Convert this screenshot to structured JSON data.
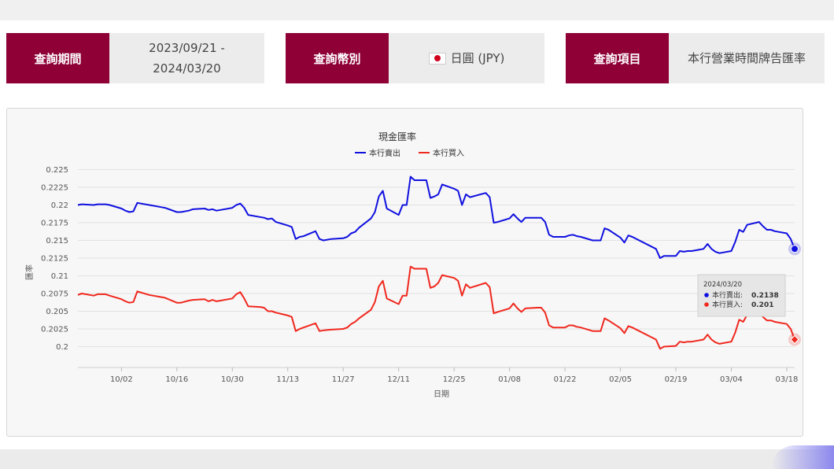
{
  "query": {
    "period_label": "查詢期間",
    "period_line1": "2023/09/21 -",
    "period_line2": "2024/03/20",
    "currency_label": "查詢幣別",
    "currency_value": "日圓 (JPY)",
    "item_label": "查詢項目",
    "item_value": "本行營業時間牌告匯率"
  },
  "colors": {
    "sell": "#1010e0",
    "buy": "#f0281e",
    "label_bg": "#8e0036"
  },
  "icons": {
    "currency_flag": "japan-flag-icon"
  },
  "chart_data": {
    "type": "line",
    "title": "現金匯率",
    "xlabel": "日期",
    "ylabel": "匯率",
    "x_range": [
      "2023-09-21",
      "2024-03-20"
    ],
    "ylim": [
      0.1975,
      0.2255
    ],
    "y_ticks": [
      "0.2",
      "0.2025",
      "0.205",
      "0.2075",
      "0.21",
      "0.2125",
      "0.215",
      "0.2175",
      "0.22",
      "0.2225",
      "0.225"
    ],
    "x_ticks": [
      {
        "date": "2023-10-02",
        "label": "10/02"
      },
      {
        "date": "2023-10-16",
        "label": "10/16"
      },
      {
        "date": "2023-10-30",
        "label": "10/30"
      },
      {
        "date": "2023-11-13",
        "label": "11/13"
      },
      {
        "date": "2023-11-27",
        "label": "11/27"
      },
      {
        "date": "2023-12-11",
        "label": "12/11"
      },
      {
        "date": "2023-12-25",
        "label": "12/25"
      },
      {
        "date": "2024-01-08",
        "label": "01/08"
      },
      {
        "date": "2024-01-22",
        "label": "01/22"
      },
      {
        "date": "2024-02-05",
        "label": "02/05"
      },
      {
        "date": "2024-02-19",
        "label": "02/19"
      },
      {
        "date": "2024-03-04",
        "label": "03/04"
      },
      {
        "date": "2024-03-18",
        "label": "03/18"
      }
    ],
    "grid": true,
    "legend_position": "top-center",
    "series": [
      {
        "name": "本行賣出",
        "color": "#1010e0",
        "points": [
          [
            "2023-09-21",
            0.22
          ],
          [
            "2023-09-22",
            0.2201
          ],
          [
            "2023-09-25",
            0.22
          ],
          [
            "2023-09-26",
            0.2201
          ],
          [
            "2023-09-28",
            0.2201
          ],
          [
            "2023-09-29",
            0.22
          ],
          [
            "2023-10-02",
            0.2195
          ],
          [
            "2023-10-03",
            0.2192
          ],
          [
            "2023-10-04",
            0.219
          ],
          [
            "2023-10-05",
            0.2191
          ],
          [
            "2023-10-06",
            0.2203
          ],
          [
            "2023-10-09",
            0.22
          ],
          [
            "2023-10-12",
            0.2197
          ],
          [
            "2023-10-13",
            0.2196
          ],
          [
            "2023-10-16",
            0.219
          ],
          [
            "2023-10-17",
            0.219
          ],
          [
            "2023-10-19",
            0.2192
          ],
          [
            "2023-10-20",
            0.2194
          ],
          [
            "2023-10-23",
            0.2195
          ],
          [
            "2023-10-24",
            0.2193
          ],
          [
            "2023-10-25",
            0.2194
          ],
          [
            "2023-10-26",
            0.2192
          ],
          [
            "2023-10-27",
            0.2193
          ],
          [
            "2023-10-30",
            0.2196
          ],
          [
            "2023-10-31",
            0.22
          ],
          [
            "2023-11-01",
            0.2202
          ],
          [
            "2023-11-02",
            0.2196
          ],
          [
            "2023-11-03",
            0.2186
          ],
          [
            "2023-11-06",
            0.2183
          ],
          [
            "2023-11-07",
            0.2182
          ],
          [
            "2023-11-08",
            0.218
          ],
          [
            "2023-11-09",
            0.2181
          ],
          [
            "2023-11-10",
            0.2176
          ],
          [
            "2023-11-13",
            0.2171
          ],
          [
            "2023-11-14",
            0.2169
          ],
          [
            "2023-11-15",
            0.2152
          ],
          [
            "2023-11-16",
            0.2155
          ],
          [
            "2023-11-17",
            0.2156
          ],
          [
            "2023-11-20",
            0.2163
          ],
          [
            "2023-11-21",
            0.2152
          ],
          [
            "2023-11-22",
            0.215
          ],
          [
            "2023-11-24",
            0.2152
          ],
          [
            "2023-11-27",
            0.2153
          ],
          [
            "2023-11-28",
            0.2155
          ],
          [
            "2023-11-29",
            0.216
          ],
          [
            "2023-11-30",
            0.2162
          ],
          [
            "2023-12-01",
            0.2168
          ],
          [
            "2023-12-04",
            0.2181
          ],
          [
            "2023-12-05",
            0.219
          ],
          [
            "2023-12-06",
            0.2212
          ],
          [
            "2023-12-07",
            0.222
          ],
          [
            "2023-12-08",
            0.2195
          ],
          [
            "2023-12-11",
            0.2186
          ],
          [
            "2023-12-12",
            0.22
          ],
          [
            "2023-12-13",
            0.22
          ],
          [
            "2023-12-14",
            0.224
          ],
          [
            "2023-12-15",
            0.2235
          ],
          [
            "2023-12-18",
            0.2235
          ],
          [
            "2023-12-19",
            0.221
          ],
          [
            "2023-12-20",
            0.2212
          ],
          [
            "2023-12-21",
            0.2215
          ],
          [
            "2023-12-22",
            0.2229
          ],
          [
            "2023-12-25",
            0.2223
          ],
          [
            "2023-12-26",
            0.222
          ],
          [
            "2023-12-27",
            0.22
          ],
          [
            "2023-12-28",
            0.2215
          ],
          [
            "2023-12-29",
            0.2211
          ],
          [
            "2024-01-02",
            0.2217
          ],
          [
            "2024-01-03",
            0.2211
          ],
          [
            "2024-01-04",
            0.2175
          ],
          [
            "2024-01-05",
            0.2176
          ],
          [
            "2024-01-08",
            0.2181
          ],
          [
            "2024-01-09",
            0.2187
          ],
          [
            "2024-01-10",
            0.2181
          ],
          [
            "2024-01-11",
            0.2176
          ],
          [
            "2024-01-12",
            0.2182
          ],
          [
            "2024-01-15",
            0.2182
          ],
          [
            "2024-01-16",
            0.2182
          ],
          [
            "2024-01-17",
            0.2176
          ],
          [
            "2024-01-18",
            0.2158
          ],
          [
            "2024-01-19",
            0.2155
          ],
          [
            "2024-01-22",
            0.2155
          ],
          [
            "2024-01-23",
            0.2157
          ],
          [
            "2024-01-24",
            0.2158
          ],
          [
            "2024-01-25",
            0.2156
          ],
          [
            "2024-01-26",
            0.2155
          ],
          [
            "2024-01-29",
            0.215
          ],
          [
            "2024-01-30",
            0.215
          ],
          [
            "2024-01-31",
            0.215
          ],
          [
            "2024-02-01",
            0.2167
          ],
          [
            "2024-02-02",
            0.2165
          ],
          [
            "2024-02-05",
            0.2154
          ],
          [
            "2024-02-06",
            0.2147
          ],
          [
            "2024-02-07",
            0.2157
          ],
          [
            "2024-02-08",
            0.2155
          ],
          [
            "2024-02-14",
            0.2138
          ],
          [
            "2024-02-15",
            0.2125
          ],
          [
            "2024-02-16",
            0.2128
          ],
          [
            "2024-02-19",
            0.2128
          ],
          [
            "2024-02-20",
            0.2135
          ],
          [
            "2024-02-21",
            0.2134
          ],
          [
            "2024-02-22",
            0.2135
          ],
          [
            "2024-02-23",
            0.2135
          ],
          [
            "2024-02-26",
            0.2138
          ],
          [
            "2024-02-27",
            0.2145
          ],
          [
            "2024-02-28",
            0.2138
          ],
          [
            "2024-02-29",
            0.2134
          ],
          [
            "2024-03-01",
            0.2132
          ],
          [
            "2024-03-04",
            0.2135
          ],
          [
            "2024-03-05",
            0.2148
          ],
          [
            "2024-03-06",
            0.2165
          ],
          [
            "2024-03-07",
            0.2162
          ],
          [
            "2024-03-08",
            0.2172
          ],
          [
            "2024-03-11",
            0.2176
          ],
          [
            "2024-03-12",
            0.217
          ],
          [
            "2024-03-13",
            0.2165
          ],
          [
            "2024-03-14",
            0.2165
          ],
          [
            "2024-03-15",
            0.2163
          ],
          [
            "2024-03-18",
            0.216
          ],
          [
            "2024-03-19",
            0.2152
          ],
          [
            "2024-03-20",
            0.2138
          ]
        ]
      },
      {
        "name": "本行買入",
        "color": "#f0281e",
        "points": [
          [
            "2023-09-21",
            0.2073
          ],
          [
            "2023-09-22",
            0.2075
          ],
          [
            "2023-09-25",
            0.2072
          ],
          [
            "2023-09-26",
            0.2074
          ],
          [
            "2023-09-28",
            0.2074
          ],
          [
            "2023-09-29",
            0.2072
          ],
          [
            "2023-10-02",
            0.2067
          ],
          [
            "2023-10-03",
            0.2064
          ],
          [
            "2023-10-04",
            0.2062
          ],
          [
            "2023-10-05",
            0.2063
          ],
          [
            "2023-10-06",
            0.2078
          ],
          [
            "2023-10-09",
            0.2073
          ],
          [
            "2023-10-12",
            0.207
          ],
          [
            "2023-10-13",
            0.2069
          ],
          [
            "2023-10-16",
            0.2062
          ],
          [
            "2023-10-17",
            0.2062
          ],
          [
            "2023-10-19",
            0.2065
          ],
          [
            "2023-10-20",
            0.2066
          ],
          [
            "2023-10-23",
            0.2067
          ],
          [
            "2023-10-24",
            0.2064
          ],
          [
            "2023-10-25",
            0.2066
          ],
          [
            "2023-10-26",
            0.2064
          ],
          [
            "2023-10-27",
            0.2065
          ],
          [
            "2023-10-30",
            0.2068
          ],
          [
            "2023-10-31",
            0.2074
          ],
          [
            "2023-11-01",
            0.2077
          ],
          [
            "2023-11-02",
            0.2068
          ],
          [
            "2023-11-03",
            0.2057
          ],
          [
            "2023-11-06",
            0.2056
          ],
          [
            "2023-11-07",
            0.2055
          ],
          [
            "2023-11-08",
            0.205
          ],
          [
            "2023-11-09",
            0.205
          ],
          [
            "2023-11-10",
            0.2048
          ],
          [
            "2023-11-13",
            0.2044
          ],
          [
            "2023-11-14",
            0.2042
          ],
          [
            "2023-11-15",
            0.2022
          ],
          [
            "2023-11-16",
            0.2025
          ],
          [
            "2023-11-17",
            0.2027
          ],
          [
            "2023-11-20",
            0.2033
          ],
          [
            "2023-11-21",
            0.2022
          ],
          [
            "2023-11-22",
            0.2023
          ],
          [
            "2023-11-24",
            0.2024
          ],
          [
            "2023-11-27",
            0.2025
          ],
          [
            "2023-11-28",
            0.2027
          ],
          [
            "2023-11-29",
            0.2032
          ],
          [
            "2023-11-30",
            0.2035
          ],
          [
            "2023-12-01",
            0.204
          ],
          [
            "2023-12-04",
            0.2052
          ],
          [
            "2023-12-05",
            0.2063
          ],
          [
            "2023-12-06",
            0.2085
          ],
          [
            "2023-12-07",
            0.2093
          ],
          [
            "2023-12-08",
            0.2068
          ],
          [
            "2023-12-11",
            0.206
          ],
          [
            "2023-12-12",
            0.2072
          ],
          [
            "2023-12-13",
            0.2072
          ],
          [
            "2023-12-14",
            0.2113
          ],
          [
            "2023-12-15",
            0.211
          ],
          [
            "2023-12-18",
            0.211
          ],
          [
            "2023-12-19",
            0.2083
          ],
          [
            "2023-12-20",
            0.2085
          ],
          [
            "2023-12-21",
            0.209
          ],
          [
            "2023-12-22",
            0.2101
          ],
          [
            "2023-12-25",
            0.2097
          ],
          [
            "2023-12-26",
            0.2093
          ],
          [
            "2023-12-27",
            0.2072
          ],
          [
            "2023-12-28",
            0.2088
          ],
          [
            "2023-12-29",
            0.2083
          ],
          [
            "2024-01-02",
            0.209
          ],
          [
            "2024-01-03",
            0.2084
          ],
          [
            "2024-01-04",
            0.2047
          ],
          [
            "2024-01-05",
            0.2049
          ],
          [
            "2024-01-08",
            0.2054
          ],
          [
            "2024-01-09",
            0.2061
          ],
          [
            "2024-01-10",
            0.2054
          ],
          [
            "2024-01-11",
            0.2049
          ],
          [
            "2024-01-12",
            0.2054
          ],
          [
            "2024-01-15",
            0.2055
          ],
          [
            "2024-01-16",
            0.2055
          ],
          [
            "2024-01-17",
            0.2048
          ],
          [
            "2024-01-18",
            0.203
          ],
          [
            "2024-01-19",
            0.2027
          ],
          [
            "2024-01-22",
            0.2027
          ],
          [
            "2024-01-23",
            0.203
          ],
          [
            "2024-01-24",
            0.203
          ],
          [
            "2024-01-25",
            0.2028
          ],
          [
            "2024-01-26",
            0.2027
          ],
          [
            "2024-01-29",
            0.2022
          ],
          [
            "2024-01-30",
            0.2022
          ],
          [
            "2024-01-31",
            0.2022
          ],
          [
            "2024-02-01",
            0.204
          ],
          [
            "2024-02-02",
            0.2037
          ],
          [
            "2024-02-05",
            0.2026
          ],
          [
            "2024-02-06",
            0.2019
          ],
          [
            "2024-02-07",
            0.2029
          ],
          [
            "2024-02-08",
            0.2027
          ],
          [
            "2024-02-14",
            0.201
          ],
          [
            "2024-02-15",
            0.1997
          ],
          [
            "2024-02-16",
            0.2
          ],
          [
            "2024-02-19",
            0.2001
          ],
          [
            "2024-02-20",
            0.2007
          ],
          [
            "2024-02-21",
            0.2006
          ],
          [
            "2024-02-22",
            0.2007
          ],
          [
            "2024-02-23",
            0.2007
          ],
          [
            "2024-02-26",
            0.201
          ],
          [
            "2024-02-27",
            0.2017
          ],
          [
            "2024-02-28",
            0.201
          ],
          [
            "2024-02-29",
            0.2006
          ],
          [
            "2024-03-01",
            0.2004
          ],
          [
            "2024-03-04",
            0.2007
          ],
          [
            "2024-03-05",
            0.202
          ],
          [
            "2024-03-06",
            0.2038
          ],
          [
            "2024-03-07",
            0.2035
          ],
          [
            "2024-03-08",
            0.2045
          ],
          [
            "2024-03-11",
            0.2049
          ],
          [
            "2024-03-12",
            0.2042
          ],
          [
            "2024-03-13",
            0.2037
          ],
          [
            "2024-03-14",
            0.2037
          ],
          [
            "2024-03-15",
            0.2035
          ],
          [
            "2024-03-18",
            0.2032
          ],
          [
            "2024-03-19",
            0.2025
          ],
          [
            "2024-03-20",
            0.201
          ]
        ]
      }
    ],
    "tooltip": {
      "date": "2024/03/20",
      "sell_label": "本行賣出:",
      "sell_value": "0.2138",
      "buy_label": "本行買入:",
      "buy_value": "0.201"
    }
  }
}
